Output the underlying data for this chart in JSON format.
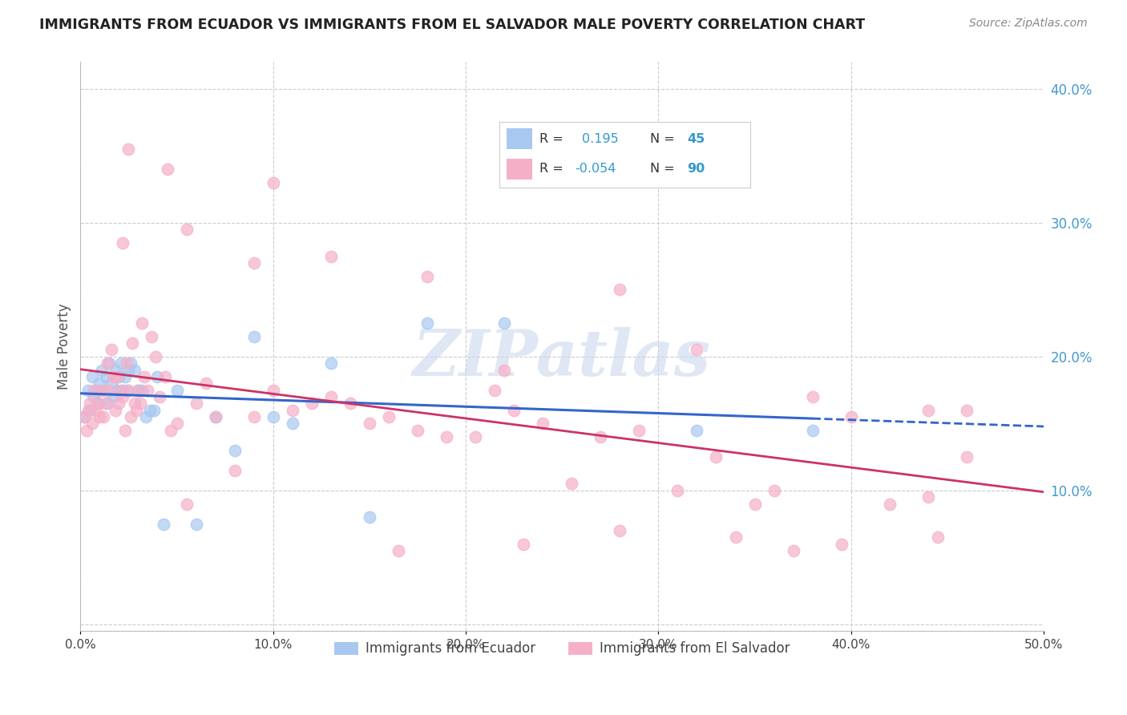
{
  "title": "IMMIGRANTS FROM ECUADOR VS IMMIGRANTS FROM EL SALVADOR MALE POVERTY CORRELATION CHART",
  "source": "Source: ZipAtlas.com",
  "ylabel": "Male Poverty",
  "xlim": [
    0.0,
    0.5
  ],
  "ylim": [
    -0.005,
    0.42
  ],
  "legend_ecuador_r": "0.195",
  "legend_ecuador_n": "45",
  "legend_salvador_r": "-0.054",
  "legend_salvador_n": "90",
  "ecuador_color": "#a8c8f0",
  "salvador_color": "#f5b0c8",
  "ecuador_line_color": "#3366cc",
  "salvador_line_color": "#cc3366",
  "watermark": "ZIPatlas",
  "ecuador_x": [
    0.002,
    0.004,
    0.005,
    0.006,
    0.007,
    0.008,
    0.009,
    0.01,
    0.011,
    0.012,
    0.013,
    0.014,
    0.015,
    0.016,
    0.017,
    0.018,
    0.019,
    0.02,
    0.021,
    0.022,
    0.023,
    0.024,
    0.025,
    0.026,
    0.028,
    0.03,
    0.032,
    0.034,
    0.036,
    0.038,
    0.04,
    0.043,
    0.05,
    0.06,
    0.07,
    0.08,
    0.09,
    0.1,
    0.11,
    0.13,
    0.15,
    0.18,
    0.22,
    0.32,
    0.38
  ],
  "ecuador_y": [
    0.155,
    0.175,
    0.16,
    0.185,
    0.17,
    0.175,
    0.165,
    0.18,
    0.19,
    0.175,
    0.185,
    0.165,
    0.195,
    0.18,
    0.17,
    0.19,
    0.175,
    0.185,
    0.195,
    0.175,
    0.185,
    0.175,
    0.19,
    0.195,
    0.19,
    0.175,
    0.175,
    0.155,
    0.16,
    0.16,
    0.185,
    0.075,
    0.175,
    0.075,
    0.155,
    0.13,
    0.215,
    0.155,
    0.15,
    0.195,
    0.08,
    0.225,
    0.225,
    0.145,
    0.145
  ],
  "salvador_x": [
    0.002,
    0.003,
    0.004,
    0.005,
    0.006,
    0.007,
    0.008,
    0.009,
    0.01,
    0.011,
    0.012,
    0.013,
    0.014,
    0.015,
    0.016,
    0.017,
    0.018,
    0.019,
    0.02,
    0.021,
    0.022,
    0.023,
    0.024,
    0.025,
    0.026,
    0.027,
    0.028,
    0.029,
    0.03,
    0.031,
    0.032,
    0.033,
    0.035,
    0.037,
    0.039,
    0.041,
    0.044,
    0.047,
    0.05,
    0.055,
    0.06,
    0.065,
    0.07,
    0.08,
    0.09,
    0.1,
    0.11,
    0.12,
    0.13,
    0.14,
    0.15,
    0.16,
    0.175,
    0.19,
    0.205,
    0.215,
    0.225,
    0.24,
    0.255,
    0.27,
    0.29,
    0.31,
    0.33,
    0.35,
    0.36,
    0.38,
    0.4,
    0.42,
    0.44,
    0.46,
    0.022,
    0.045,
    0.09,
    0.13,
    0.18,
    0.22,
    0.28,
    0.32,
    0.37,
    0.44,
    0.025,
    0.055,
    0.1,
    0.165,
    0.23,
    0.28,
    0.34,
    0.395,
    0.445,
    0.46
  ],
  "salvador_y": [
    0.155,
    0.145,
    0.16,
    0.165,
    0.15,
    0.175,
    0.16,
    0.165,
    0.155,
    0.175,
    0.155,
    0.165,
    0.195,
    0.175,
    0.205,
    0.185,
    0.16,
    0.185,
    0.165,
    0.175,
    0.17,
    0.145,
    0.195,
    0.175,
    0.155,
    0.21,
    0.165,
    0.16,
    0.175,
    0.165,
    0.225,
    0.185,
    0.175,
    0.215,
    0.2,
    0.17,
    0.185,
    0.145,
    0.15,
    0.09,
    0.165,
    0.18,
    0.155,
    0.115,
    0.155,
    0.175,
    0.16,
    0.165,
    0.17,
    0.165,
    0.15,
    0.155,
    0.145,
    0.14,
    0.14,
    0.175,
    0.16,
    0.15,
    0.105,
    0.14,
    0.145,
    0.1,
    0.125,
    0.09,
    0.1,
    0.17,
    0.155,
    0.09,
    0.095,
    0.125,
    0.285,
    0.34,
    0.27,
    0.275,
    0.26,
    0.19,
    0.25,
    0.205,
    0.055,
    0.16,
    0.355,
    0.295,
    0.33,
    0.055,
    0.06,
    0.07,
    0.065,
    0.06,
    0.065,
    0.16
  ]
}
